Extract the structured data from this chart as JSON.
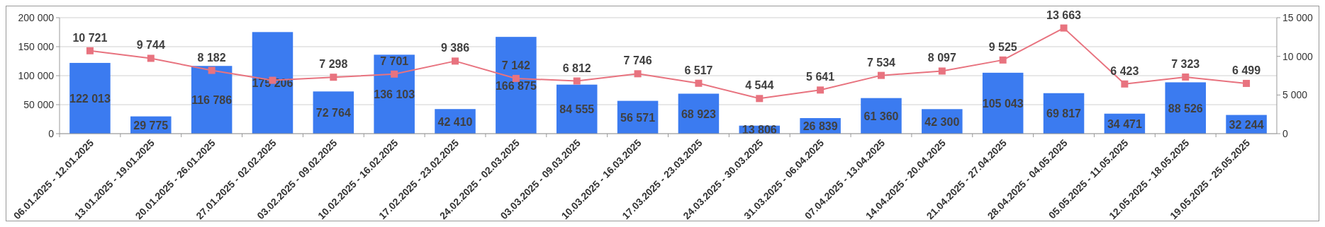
{
  "chart_data": {
    "type": "bar",
    "categories": [
      "06.01.2025 - 12.01.2025",
      "13.01.2025 - 19.01.2025",
      "20.01.2025 - 26.01.2025",
      "27.01.2025 - 02.02.2025",
      "03.02.2025 - 09.02.2025",
      "10.02.2025 - 16.02.2025",
      "17.02.2025 - 23.02.2025",
      "24.02.2025 - 02.03.2025",
      "03.03.2025 - 09.03.2025",
      "10.03.2025 - 16.03.2025",
      "17.03.2025 - 23.03.2025",
      "24.03.2025 - 30.03.2025",
      "31.03.2025 - 06.04.2025",
      "07.04.2025 - 13.04.2025",
      "14.04.2025 - 20.04.2025",
      "21.04.2025 - 27.04.2025",
      "28.04.2025 - 04.05.2025",
      "05.05.2025 - 11.05.2025",
      "12.05.2025 - 18.05.2025",
      "19.05.2025 - 25.05.2025"
    ],
    "series": [
      {
        "color": "#3b7bf0",
        "values": [
          122013,
          29775,
          116786,
          175206,
          72764,
          136103,
          42410,
          166875,
          84555,
          56571,
          68923,
          13806,
          26839,
          61360,
          42300,
          105043,
          69817,
          34471,
          88526,
          32244
        ],
        "value_labels": [
          "122 013",
          "29 775",
          "116 786",
          "175 206",
          "72 764",
          "136 103",
          "42 410",
          "166 875",
          "84 555",
          "56 571",
          "68 923",
          "13 806",
          "26 839",
          "61 360",
          "42 300",
          "105 043",
          "69 817",
          "34 471",
          "88 526",
          "32 244"
        ]
      },
      {
        "type": "line",
        "axis": "y2",
        "color": "#e8737f",
        "marker": "square",
        "values": [
          10721,
          9744,
          8182,
          6900,
          7298,
          7701,
          9386,
          7142,
          6812,
          7746,
          6517,
          4544,
          5641,
          7534,
          8097,
          9525,
          13663,
          6423,
          7323,
          6499
        ],
        "value_labels": [
          "10 721",
          "9 744",
          "8 182",
          null,
          "7 298",
          "7 701",
          "9 386",
          "7 142",
          "6 812",
          "7 746",
          "6 517",
          "4 544",
          "5 641",
          "7 534",
          "8 097",
          "9 525",
          "13 663",
          "6 423",
          "7 323",
          "6 499"
        ]
      }
    ],
    "ylim": [
      0,
      200000
    ],
    "yticks": [
      0,
      {
        "value": 50000,
        "label": "50 000"
      },
      {
        "value": 100000,
        "label": "100 000"
      },
      {
        "value": 150000,
        "label": "150 000"
      },
      {
        "value": 200000,
        "label": "200 000"
      }
    ],
    "y2lim": [
      0,
      15000
    ],
    "y2ticks": [
      0,
      {
        "value": 5000,
        "label": "5 000"
      },
      {
        "value": 10000,
        "label": "10 000"
      },
      {
        "value": 15000,
        "label": "15 000"
      }
    ],
    "grid": "y"
  }
}
